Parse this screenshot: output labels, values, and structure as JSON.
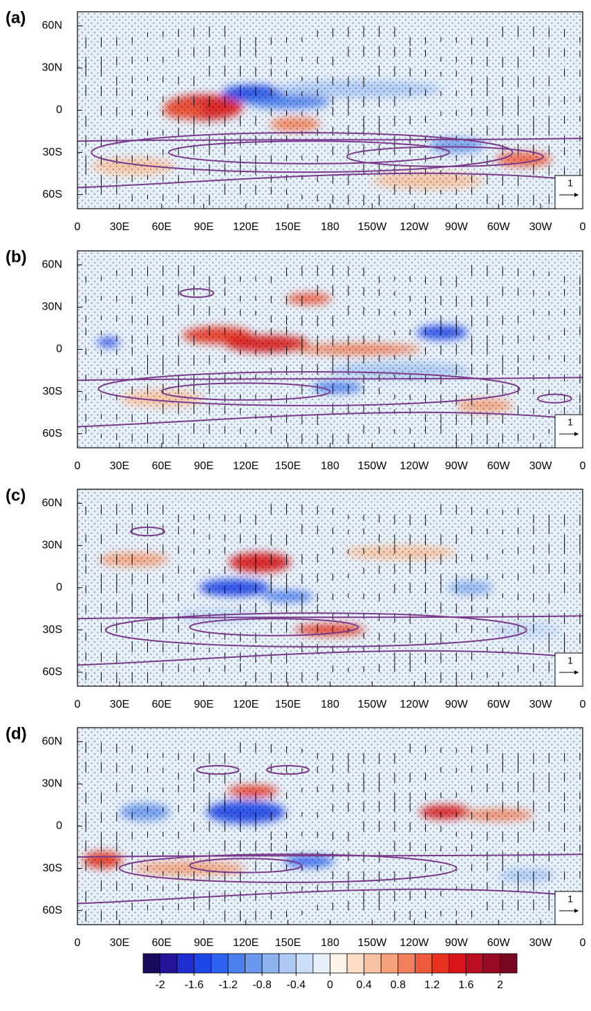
{
  "panels": [
    {
      "label": "(a)"
    },
    {
      "label": "(b)"
    },
    {
      "label": "(c)"
    },
    {
      "label": "(d)"
    }
  ],
  "x_axis": {
    "lim": [
      0,
      360
    ],
    "ticks": [
      0,
      {
        "value": 30,
        "label": "30E"
      },
      {
        "value": 60,
        "label": "60E"
      },
      {
        "value": 90,
        "label": "90E"
      },
      {
        "value": 120,
        "label": "120E"
      },
      {
        "value": 150,
        "label": "150E"
      },
      180,
      {
        "value": 210,
        "label": "150W"
      },
      {
        "value": 240,
        "label": "120W"
      },
      {
        "value": 270,
        "label": "90W"
      },
      {
        "value": 300,
        "label": "60W"
      },
      {
        "value": 330,
        "label": "30W"
      },
      {
        "value": 360,
        "label": "0"
      }
    ]
  },
  "y_axis": {
    "lim": [
      -70,
      70
    ],
    "ticks": [
      {
        "value": 60,
        "label": "60N"
      },
      {
        "value": 30,
        "label": "30N"
      },
      0,
      {
        "value": -30,
        "label": "30S"
      },
      {
        "value": -60,
        "label": "60S"
      }
    ]
  },
  "reference_vector": "1",
  "colorbar": {
    "lim": [
      -2.2,
      2.2
    ],
    "ticks": [
      -2,
      -1.6,
      -1.2,
      -0.8,
      -0.4,
      0,
      0.4,
      0.8,
      1.2,
      1.6,
      2
    ],
    "colors": [
      "#1a0a5e",
      "#24149a",
      "#1e2ed0",
      "#1f47e8",
      "#2f62f0",
      "#4a7fee",
      "#6a98ec",
      "#8cb2f0",
      "#adc9f4",
      "#cbddf8",
      "#e6f0fb",
      "#fdf3e8",
      "#fbdcc4",
      "#f8c2a0",
      "#f5a27c",
      "#f2805a",
      "#ee5a3c",
      "#e8331f",
      "#d9141a",
      "#bb0e22",
      "#9a0a26",
      "#780820"
    ]
  }
}
